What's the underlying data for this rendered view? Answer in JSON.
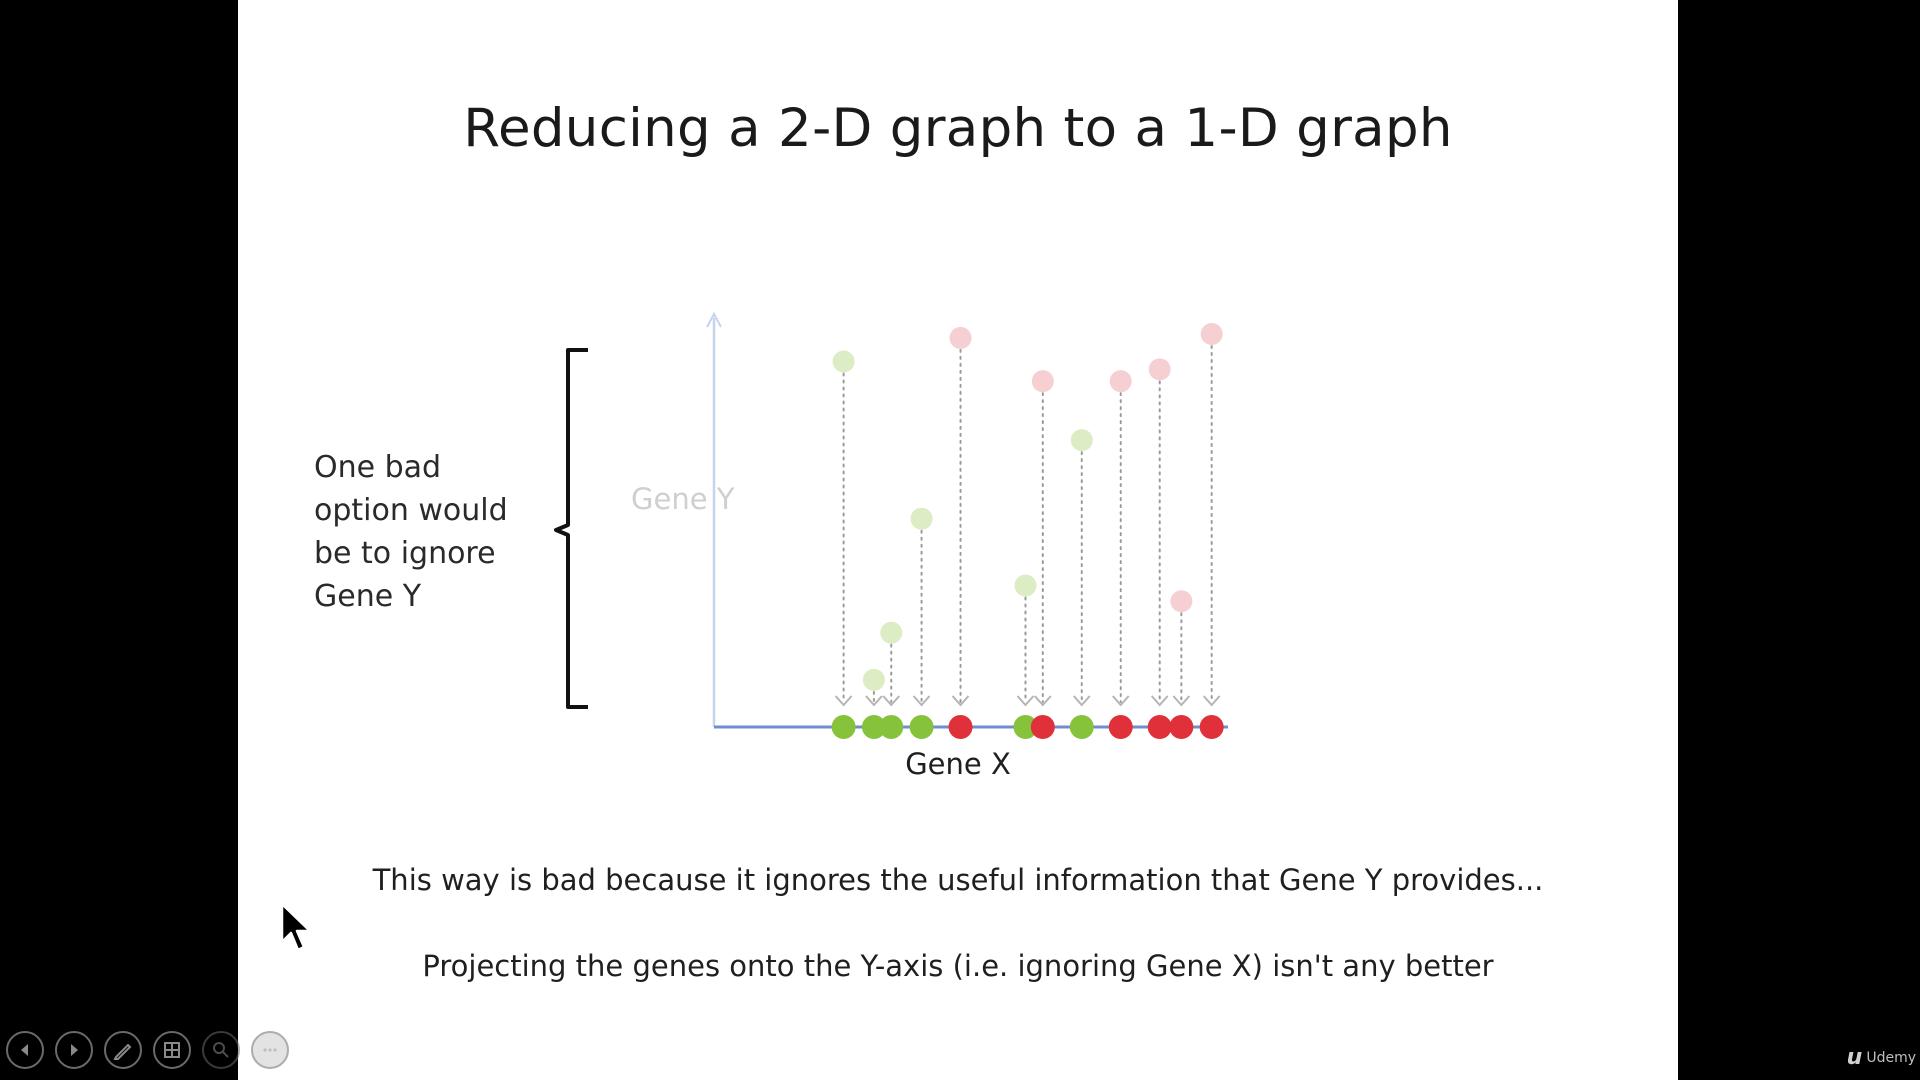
{
  "slide": {
    "title": "Reducing a 2-D graph to a 1-D graph",
    "side_note": "One bad option would be to ignore Gene Y",
    "footnote_1": "This way is bad because it ignores the useful information that Gene Y provides...",
    "footnote_2": "Projecting the genes onto the Y-axis (i.e. ignoring Gene X) isn't any better"
  },
  "chart_data": {
    "type": "scatter",
    "xlabel": "Gene X",
    "ylabel": "Gene Y",
    "xlim": [
      0,
      100
    ],
    "ylim": [
      0,
      100
    ],
    "series": [
      {
        "group": "green",
        "x": [
          14,
          21,
          25,
          32,
          56,
          69
        ],
        "y": [
          93,
          12,
          24,
          53,
          36,
          73
        ]
      },
      {
        "group": "red",
        "x": [
          41,
          60,
          78,
          87,
          92,
          99
        ],
        "y": [
          99,
          88,
          88,
          91,
          32,
          100
        ]
      }
    ],
    "colors": {
      "green_projected": "#86c33a",
      "red_projected": "#e0303a",
      "green_faded": "#dcecc4",
      "red_faded": "#f6cfd3",
      "axis": "#6f8ed1",
      "axis_faded": "#c5d3ef",
      "guide": "#9a9a9a"
    }
  },
  "controls": [
    {
      "icon": "previous-icon"
    },
    {
      "icon": "next-icon"
    },
    {
      "icon": "pen-icon"
    },
    {
      "icon": "slides-icon"
    },
    {
      "icon": "zoom-icon"
    },
    {
      "icon": "more-icon"
    }
  ],
  "brand": {
    "name": "Udemy",
    "mark": "u"
  }
}
